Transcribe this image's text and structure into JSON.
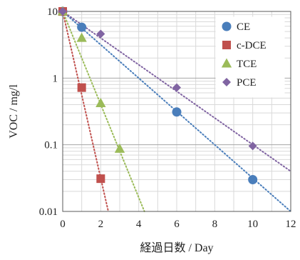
{
  "chart_data": {
    "type": "scatter",
    "xlabel": "経過日数 / Day",
    "ylabel": "VOC / mg/l",
    "xlim": [
      0,
      12
    ],
    "ylim": [
      0.01,
      10
    ],
    "yscale": "log",
    "x_ticks": [
      0,
      2,
      4,
      6,
      8,
      10,
      12
    ],
    "y_ticks": [
      0.01,
      0.1,
      1,
      10
    ],
    "x_tick_labels": [
      "0",
      "2",
      "4",
      "6",
      "8",
      "10",
      "12"
    ],
    "y_tick_labels": [
      "0.01",
      "0.1",
      "1",
      "10"
    ],
    "grid": true,
    "legend_position": "top-right",
    "series": [
      {
        "name": "CE",
        "marker": "circle",
        "color": "#4a7ebb",
        "points": [
          [
            0,
            10
          ],
          [
            1,
            5.8
          ],
          [
            6,
            0.31
          ],
          [
            10,
            0.03
          ]
        ],
        "trendline": [
          [
            0,
            10
          ],
          [
            12,
            0.01
          ]
        ]
      },
      {
        "name": "c-DCE",
        "marker": "square",
        "color": "#c0504d",
        "points": [
          [
            0,
            10
          ],
          [
            1,
            0.72
          ],
          [
            2,
            0.031
          ]
        ],
        "trendline": [
          [
            0,
            10
          ],
          [
            2.4,
            0.01
          ]
        ]
      },
      {
        "name": "TCE",
        "marker": "triangle",
        "color": "#9bbb59",
        "points": [
          [
            0,
            10
          ],
          [
            1,
            4.0
          ],
          [
            2,
            0.42
          ],
          [
            3,
            0.087
          ]
        ],
        "trendline": [
          [
            0,
            10
          ],
          [
            4.3,
            0.01
          ]
        ]
      },
      {
        "name": "PCE",
        "marker": "diamond",
        "color": "#8064a2",
        "points": [
          [
            0,
            10
          ],
          [
            2,
            4.6
          ],
          [
            6,
            0.72
          ],
          [
            10,
            0.096
          ]
        ],
        "trendline": [
          [
            0,
            10
          ],
          [
            12,
            0.04
          ]
        ]
      }
    ]
  }
}
